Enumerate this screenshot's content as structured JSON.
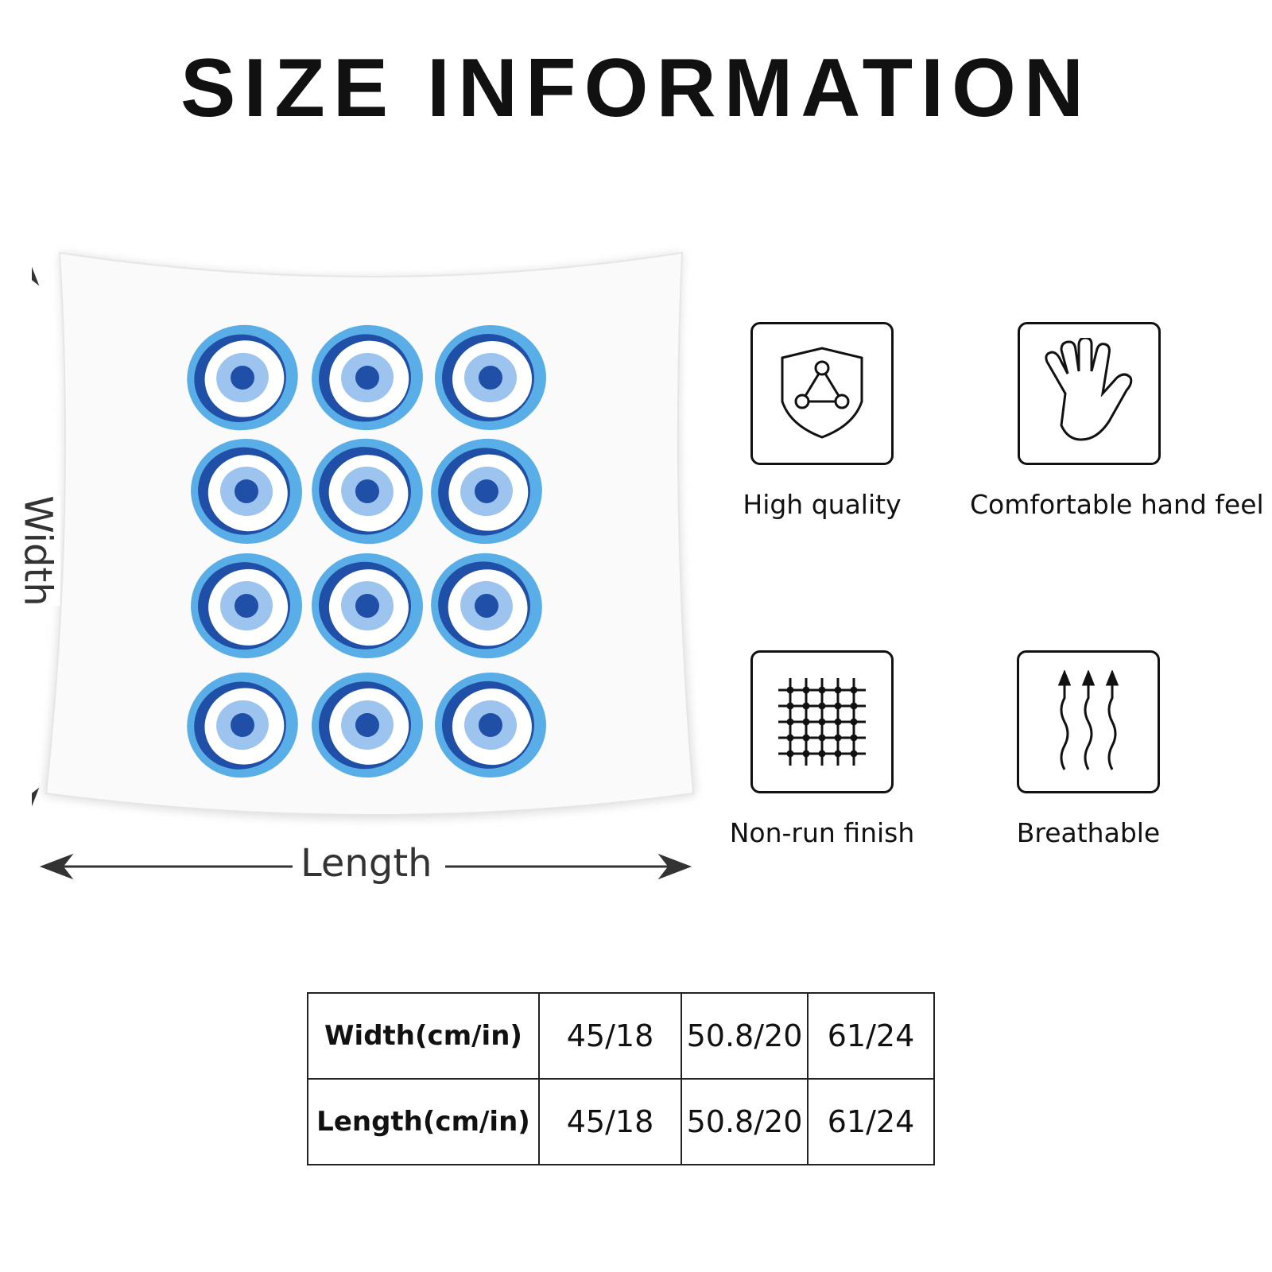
{
  "title": "SIZE INFORMATION",
  "dimensions": {
    "width_label": "Width",
    "length_label": "Length"
  },
  "colors": {
    "outer": "#5aaee8",
    "ring": "#1f4fa6",
    "iris": "#9cc4ee",
    "pupil": "#1f4fa6"
  },
  "pattern": {
    "name": "evil-eye",
    "rows": 4,
    "cols": 3
  },
  "features": [
    {
      "icon": "shield-icon",
      "label": "High quality"
    },
    {
      "icon": "hand-icon",
      "label": "Comfortable hand feel"
    },
    {
      "icon": "grid-icon",
      "label": "Non-run finish"
    },
    {
      "icon": "wavy-arrows-icon",
      "label": "Breathable"
    }
  ],
  "size_table": {
    "rows": [
      {
        "header": "Width(cm/in)",
        "values": [
          "45/18",
          "50.8/20",
          "61/24"
        ]
      },
      {
        "header": "Length(cm/in)",
        "values": [
          "45/18",
          "50.8/20",
          "61/24"
        ]
      }
    ]
  }
}
